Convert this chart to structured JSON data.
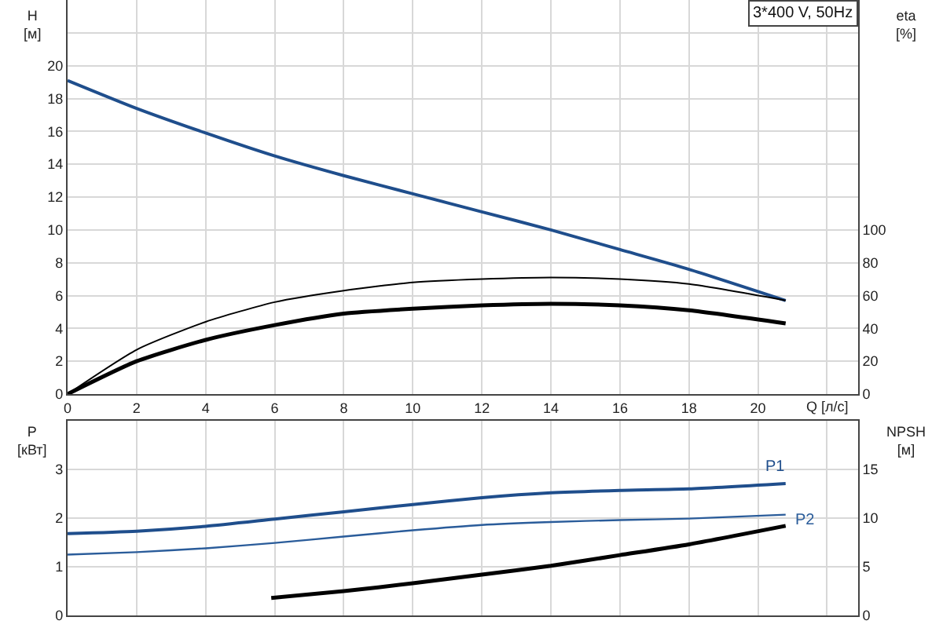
{
  "chart_data": [
    {
      "type": "line",
      "title": "3*400 V, 50Hz",
      "xlabel": "Q [л/с]",
      "ylabel": "H [м]",
      "y2label": "eta [%]",
      "xlim": [
        0,
        22.9
      ],
      "xticks": [
        0,
        2,
        4,
        6,
        8,
        10,
        12,
        14,
        16,
        18,
        20,
        {
          "value": 22,
          "label": null
        }
      ],
      "ylim": [
        0,
        24
      ],
      "yticks": [
        0,
        2,
        4,
        6,
        8,
        10,
        12,
        14,
        16,
        18,
        20,
        {
          "value": 22,
          "label": null
        }
      ],
      "y2lim": [
        0,
        240
      ],
      "y2ticks": [
        0,
        20,
        40,
        60,
        80,
        100
      ],
      "grid": true,
      "legend": false,
      "marker": "none",
      "line_style": "solid",
      "x": [
        0,
        2,
        4,
        6,
        8,
        10,
        12,
        14,
        16,
        18,
        20.8
      ],
      "series": [
        {
          "color": "#1f4e8c",
          "values": [
            19.1,
            17.4,
            15.9,
            14.5,
            13.3,
            12.2,
            11.1,
            10.0,
            8.8,
            7.6,
            5.7
          ]
        },
        {
          "color": "#000000",
          "axis": "y2",
          "values": [
            0,
            27,
            44,
            56,
            63,
            68,
            70,
            71,
            70,
            67,
            57
          ]
        },
        {
          "color": "#000000",
          "axis": "y2",
          "values": [
            0,
            20,
            33,
            42,
            49,
            52,
            54,
            55,
            54,
            51,
            43
          ]
        }
      ]
    },
    {
      "type": "line",
      "ylabel": "P [кВт]",
      "y2label": "NPSH [м]",
      "tick_labels": "y",
      "xlim": [
        0,
        22.9
      ],
      "xticks": [
        0,
        2,
        4,
        6,
        8,
        10,
        12,
        14,
        16,
        18,
        20,
        22
      ],
      "ylim": [
        0,
        4
      ],
      "yticks": [
        0,
        1,
        2,
        3
      ],
      "y2lim": [
        0,
        20
      ],
      "y2ticks": [
        0,
        5,
        10,
        15
      ],
      "grid": true,
      "legend": false,
      "marker": "none",
      "line_style": "solid",
      "x": [
        0,
        2,
        4,
        6,
        8,
        10,
        12,
        14,
        16,
        18,
        20.8
      ],
      "series": [
        {
          "name": "P1",
          "color": "#1f4e8c",
          "values": [
            1.68,
            1.73,
            1.83,
            1.98,
            2.13,
            2.28,
            2.42,
            2.52,
            2.57,
            2.6,
            2.71
          ]
        },
        {
          "name": "P2",
          "color": "#2a5c9a",
          "values": [
            1.25,
            1.3,
            1.38,
            1.49,
            1.62,
            1.75,
            1.86,
            1.92,
            1.96,
            1.99,
            2.07
          ]
        },
        {
          "color": "#000000",
          "axis": "y2",
          "x": [
            5.9,
            8,
            10,
            12,
            14,
            16,
            18,
            20.8
          ],
          "values": [
            1.8,
            2.5,
            3.3,
            4.2,
            5.1,
            6.2,
            7.3,
            9.2
          ]
        }
      ]
    }
  ]
}
